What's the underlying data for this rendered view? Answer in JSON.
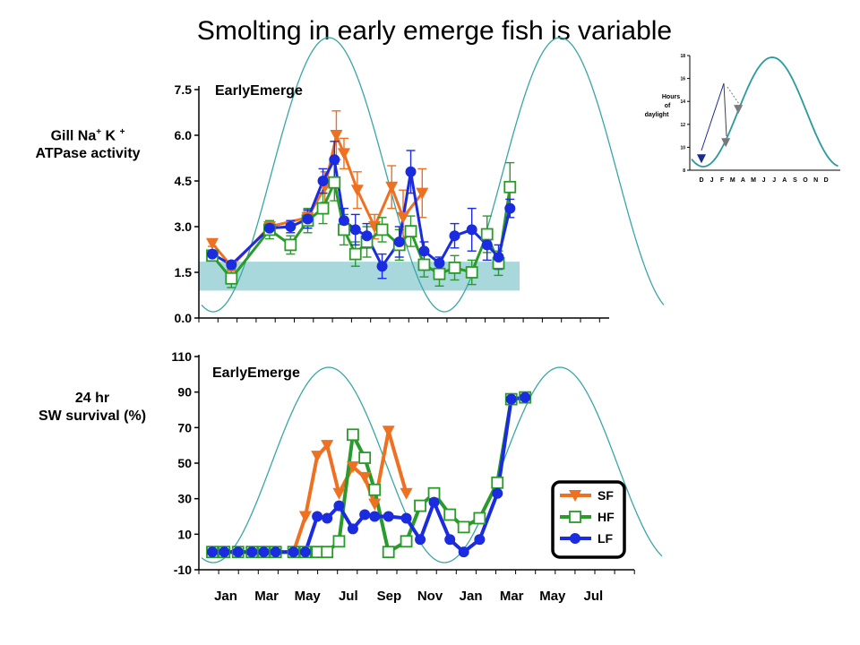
{
  "title": "Smolting in early emerge fish is variable",
  "top_ylabel_line1": "Gill Na",
  "top_ylabel_sup1": "+",
  "top_ylabel_k": " K ",
  "top_ylabel_sup2": "+",
  "top_ylabel_line2": "ATPase activity",
  "bottom_ylabel_line1": "24 hr",
  "bottom_ylabel_line2": "SW survival (%)",
  "colors": {
    "SF": "#ee7020",
    "HF": "#2a9a2a",
    "LF": "#1a2be0",
    "curve": "#3aa6a6",
    "band": "#a8d8dc"
  },
  "chart_data": [
    {
      "type": "line",
      "title": "EarlyEmerge",
      "yticks": [
        "0.0",
        "1.5",
        "3.0",
        "4.5",
        "6.0",
        "7.5"
      ],
      "ylim": [
        0,
        7.5
      ],
      "xlim": [
        0,
        20
      ],
      "reference_band": [
        0.9,
        1.85
      ],
      "series": [
        {
          "name": "SF",
          "x": [
            0,
            1,
            3,
            5,
            5.9,
            6.5,
            6.9,
            7.6,
            8.5,
            9.4,
            10,
            11
          ],
          "y": [
            2.45,
            1.7,
            3.0,
            3.3,
            4.3,
            6.0,
            5.4,
            4.2,
            3.0,
            4.3,
            3.3,
            4.1
          ],
          "err": [
            0.1,
            0.15,
            0.2,
            0.2,
            0.5,
            0.8,
            0.5,
            0.6,
            0.4,
            0.7,
            0.9,
            0.8
          ]
        },
        {
          "name": "HF",
          "x": [
            0,
            1,
            3,
            4.1,
            5,
            5.8,
            6.4,
            6.9,
            7.5,
            8.1,
            8.9,
            9.8,
            10.4,
            11.1,
            11.9,
            12.7,
            13.6,
            14.4,
            15,
            15.6
          ],
          "y": [
            2.05,
            1.3,
            2.9,
            2.4,
            3.2,
            3.6,
            4.45,
            2.9,
            2.1,
            2.5,
            2.9,
            2.4,
            2.85,
            1.75,
            1.45,
            1.65,
            1.5,
            2.75,
            1.8,
            4.3
          ],
          "err": [
            0.15,
            0.3,
            0.3,
            0.3,
            0.4,
            0.5,
            0.6,
            0.5,
            0.4,
            0.5,
            0.4,
            0.5,
            0.5,
            0.4,
            0.4,
            0.4,
            0.4,
            0.6,
            0.4,
            0.8
          ]
        },
        {
          "name": "LF",
          "x": [
            0,
            1,
            3,
            4.1,
            5,
            5.8,
            6.4,
            6.9,
            7.5,
            8.1,
            8.9,
            9.8,
            10.4,
            11.1,
            11.9,
            12.7,
            13.6,
            14.4,
            15,
            15.6
          ],
          "y": [
            2.1,
            1.75,
            2.95,
            3.0,
            3.25,
            4.5,
            5.2,
            3.2,
            2.9,
            2.7,
            1.7,
            2.5,
            4.8,
            2.2,
            1.8,
            2.7,
            2.9,
            2.4,
            2.0,
            3.6
          ],
          "err": [
            0.1,
            0.1,
            0.2,
            0.2,
            0.3,
            0.4,
            0.6,
            0.4,
            0.5,
            0.4,
            0.4,
            0.5,
            0.7,
            0.3,
            0.2,
            0.4,
            0.7,
            0.5,
            0.4,
            0.3
          ]
        }
      ]
    },
    {
      "type": "line",
      "title": "EarlyEmerge",
      "yticks": [
        "-10",
        "10",
        "30",
        "50",
        "70",
        "90",
        "110"
      ],
      "ylim": [
        -10,
        110
      ],
      "categories": [
        "Jan",
        "Mar",
        "May",
        "Jul",
        "Sep",
        "Nov",
        "Jan",
        "Mar",
        "May",
        "Jul"
      ],
      "xlim": [
        0,
        21
      ],
      "legend_placement": "bottom-right",
      "series": [
        {
          "name": "SF",
          "x": [
            0,
            0.6,
            1.3,
            2,
            2.6,
            3.2,
            4.1,
            4.7,
            5.3,
            5.8,
            6.4,
            7.1,
            7.7,
            8.2,
            8.9,
            9.8
          ],
          "y": [
            0,
            0,
            0,
            0,
            0,
            0,
            0,
            20,
            54,
            60,
            33,
            48,
            42,
            27,
            68,
            33
          ]
        },
        {
          "name": "HF",
          "x": [
            0,
            0.6,
            1.3,
            2,
            2.6,
            3.2,
            4.1,
            4.7,
            5.3,
            5.8,
            6.4,
            7.1,
            7.7,
            8.2,
            8.9,
            9.8,
            10.5,
            11.2,
            12,
            12.7,
            13.5,
            14.4,
            15.1,
            15.8
          ],
          "y": [
            0,
            0,
            0,
            0,
            0,
            0,
            0,
            0,
            0,
            0,
            6,
            66,
            53,
            35,
            0,
            6,
            26,
            33,
            21,
            14,
            19,
            39,
            86,
            87
          ]
        },
        {
          "name": "LF",
          "x": [
            0,
            0.6,
            1.3,
            2,
            2.6,
            3.2,
            4.1,
            4.7,
            5.3,
            5.8,
            6.4,
            7.1,
            7.7,
            8.2,
            8.9,
            9.8,
            10.5,
            11.2,
            12,
            12.7,
            13.5,
            14.4,
            15.1,
            15.8
          ],
          "y": [
            0,
            0,
            0,
            0,
            0,
            0,
            0,
            0,
            20,
            19,
            26,
            13,
            21,
            20,
            20,
            19,
            7,
            28,
            7,
            0,
            7,
            33,
            86,
            87
          ]
        }
      ]
    },
    {
      "type": "line",
      "ylabel": "Hours of daylight",
      "ylabel_words": [
        "Hours",
        "of",
        "daylight"
      ],
      "yticks": [
        "8",
        "10",
        "12",
        "14",
        "16",
        "18"
      ],
      "categories": [
        "D",
        "J",
        "F",
        "M",
        "A",
        "M",
        "J",
        "J",
        "A",
        "S",
        "O",
        "N",
        "D"
      ],
      "markers": [
        {
          "x": 0,
          "y": 9.0
        },
        {
          "x": 2.0,
          "y": 10.4
        },
        {
          "x": 3.2,
          "y": 13.3
        }
      ]
    }
  ]
}
